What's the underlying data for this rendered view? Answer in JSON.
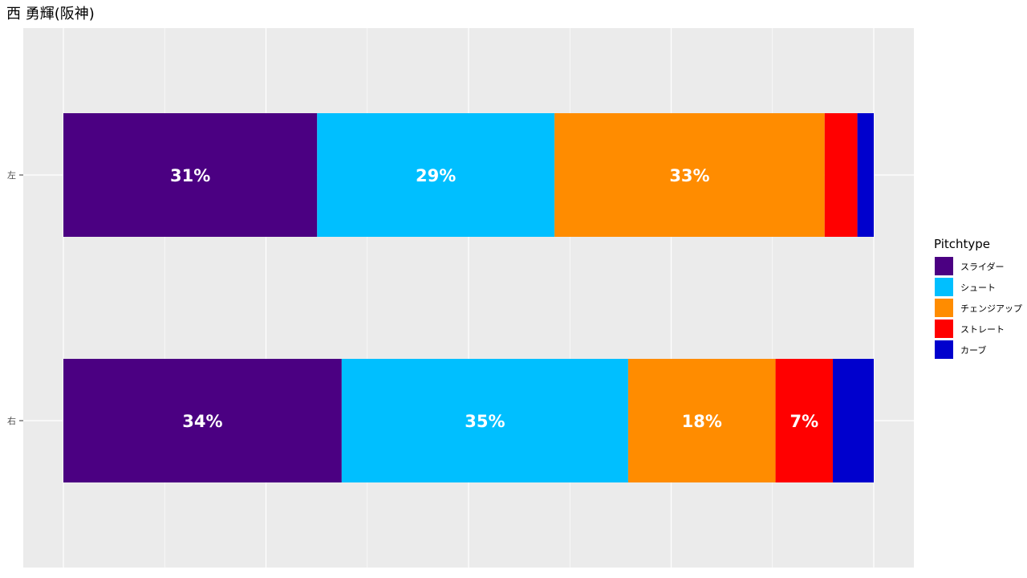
{
  "chart_data": {
    "type": "bar",
    "orientation": "horizontal",
    "stacked": true,
    "title": "西 勇輝(阪神)",
    "xlabel": "",
    "ylabel": "",
    "xlim": [
      0,
      1
    ],
    "grid": true,
    "legend_position": "right",
    "categories": [
      "左",
      "右"
    ],
    "legend_title": "Pitchtype",
    "series": [
      {
        "name": "スライダー",
        "color": "#4B0082",
        "values": [
          0.31,
          0.34
        ],
        "labels": [
          "31%",
          "34%"
        ]
      },
      {
        "name": "シュート",
        "color": "#00BFFF",
        "values": [
          0.29,
          0.35
        ],
        "labels": [
          "29%",
          "35%"
        ]
      },
      {
        "name": "チェンジアップ",
        "color": "#FF8C00",
        "values": [
          0.33,
          0.18
        ],
        "labels": [
          "33%",
          "18%"
        ]
      },
      {
        "name": "ストレート",
        "color": "#FF0000",
        "values": [
          0.04,
          0.07
        ],
        "labels": [
          "",
          "7%"
        ]
      },
      {
        "name": "カーブ",
        "color": "#0000CD",
        "values": [
          0.02,
          0.05
        ],
        "labels": [
          "",
          ""
        ]
      }
    ]
  }
}
